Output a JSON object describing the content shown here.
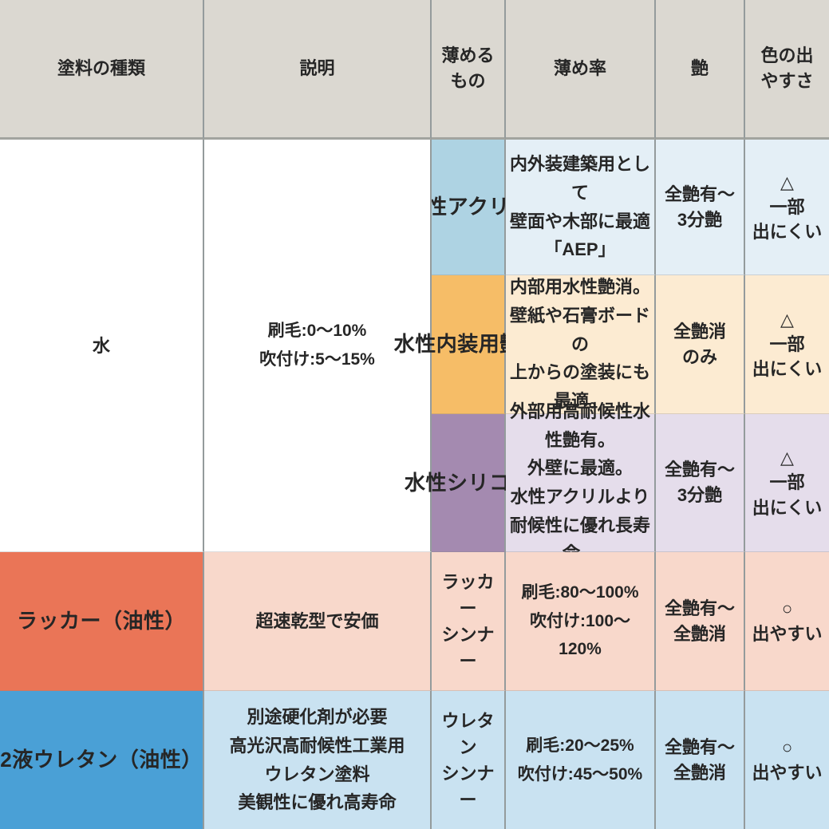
{
  "palette": {
    "header_bg": "#dbd8d1",
    "grid_line": "#949b9c",
    "header_rule": "#a2a49f",
    "text": "#262626",
    "merged_bg": "#ffffff",
    "rows": [
      {
        "name_bg": "#aed3e3",
        "cell_bg": "#e4eff6"
      },
      {
        "name_bg": "#f6bd67",
        "cell_bg": "#fcebd2"
      },
      {
        "name_bg": "#a48ab0",
        "cell_bg": "#e5ddeb"
      },
      {
        "name_bg": "#ea7557",
        "cell_bg": "#f8d8cb"
      },
      {
        "name_bg": "#4aa0d6",
        "cell_bg": "#c9e2f1"
      }
    ]
  },
  "table": {
    "headers": {
      "paint_type": "塗料の種類",
      "description": "説明",
      "thinner": "薄める\nもの",
      "ratio": "薄め率",
      "gloss": "艶",
      "color_ease": "色の出\nやすさ"
    },
    "merged_water": {
      "thinner": "水",
      "ratio": "刷毛:0〜10%\n吹付け:5〜15%"
    },
    "rows": [
      {
        "name": "水性アクリル",
        "description": "内外装建築用として\n壁面や木部に最適「AEP」",
        "gloss": "全艶有〜\n3分艶",
        "color_ease": "△\n一部\n出にくい"
      },
      {
        "name": "水性内装用艶消",
        "description": "内部用水性艶消。\n壁紙や石膏ボードの\n上からの塗装にも最適。",
        "gloss": "全艶消\nのみ",
        "color_ease": "△\n一部\n出にくい"
      },
      {
        "name": "水性シリコン",
        "description": "外部用高耐候性水性艶有。\n外壁に最適。\n水性アクリルより\n耐候性に優れ長寿命。",
        "gloss": "全艶有〜\n3分艶",
        "color_ease": "△\n一部\n出にくい"
      },
      {
        "name": "ラッカー（油性）",
        "description": "超速乾型で安価",
        "thinner": "ラッカー\nシンナー",
        "ratio": "刷毛:80〜100%\n吹付け:100〜120%",
        "gloss": "全艶有〜\n全艶消",
        "color_ease": "○\n出やすい"
      },
      {
        "name": "2液ウレタン（油性）",
        "description": "別途硬化剤が必要\n高光沢高耐候性工業用\nウレタン塗料\n美観性に優れ高寿命",
        "thinner": "ウレタン\nシンナー",
        "ratio": "刷毛:20〜25%\n吹付け:45〜50%",
        "gloss": "全艶有〜\n全艶消",
        "color_ease": "○\n出やすい"
      }
    ]
  }
}
